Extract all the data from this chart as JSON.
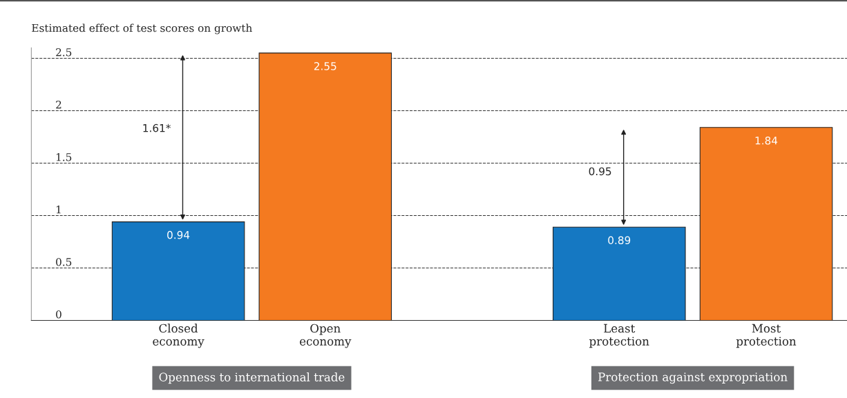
{
  "chart_data": {
    "type": "bar",
    "ylabel": "Estimated effect of test scores on growth",
    "categories": [
      "Closed\neconomy",
      "Open\neconomy",
      null,
      "Least\nprotection",
      "Most\nprotection"
    ],
    "values": [
      0.94,
      2.55,
      null,
      0.89,
      1.84
    ],
    "colors": [
      "#1578c2",
      "#f47a20",
      "#ffffff",
      "#1578c2",
      "#f47a20"
    ],
    "ylim": [
      0,
      2.6
    ],
    "yticks": [
      0,
      0.5,
      1,
      1.5,
      2,
      2.5
    ],
    "grid": "y",
    "data_labels": true,
    "annotations": [
      "1.61*",
      "0.95",
      "Openness to international trade",
      "Protection against expropriation"
    ]
  }
}
